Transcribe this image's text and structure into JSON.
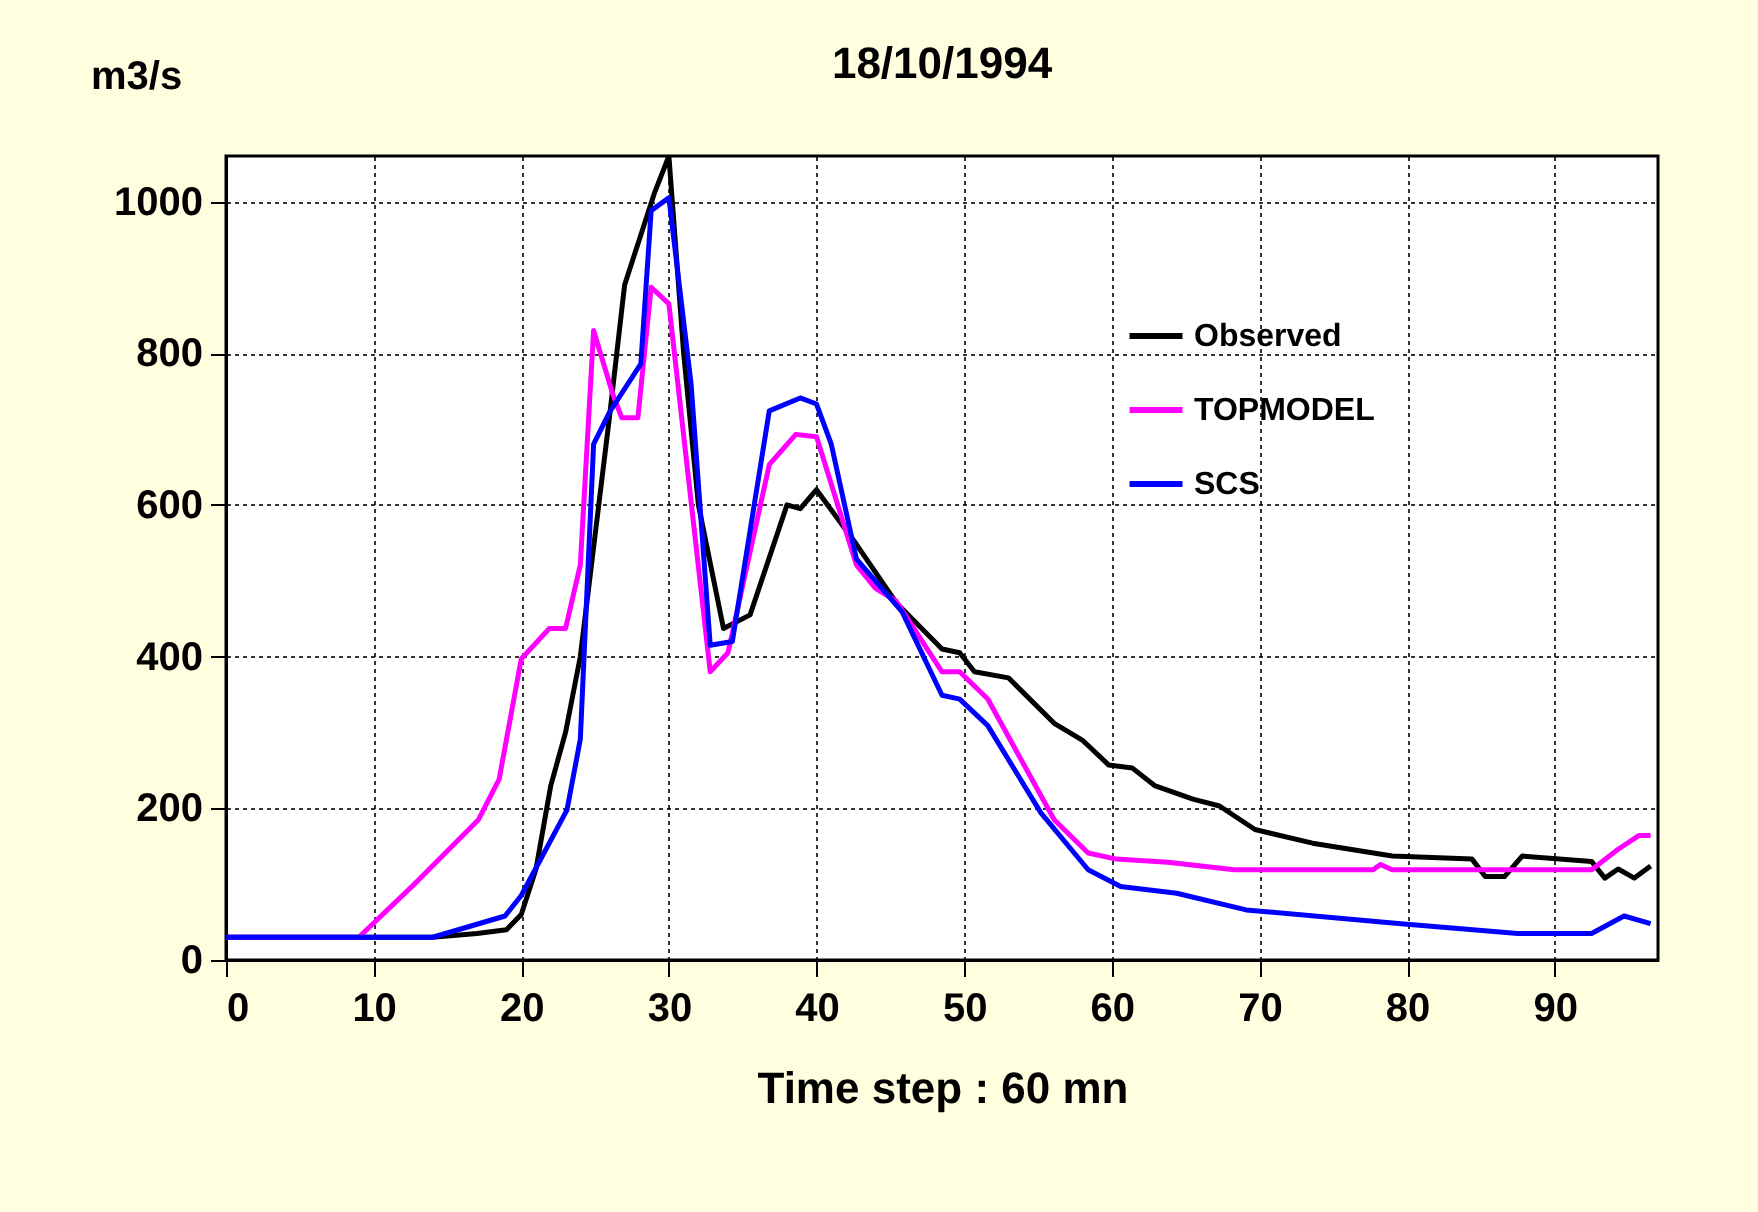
{
  "chart_data": {
    "type": "line",
    "title": "18/10/1994",
    "ylabel": "m3/s",
    "xlabel": "Time step : 60 mn",
    "xlim": [
      0,
      97
    ],
    "ylim": [
      0,
      1060
    ],
    "xticks": [
      0,
      10,
      20,
      30,
      40,
      50,
      60,
      70,
      80,
      90
    ],
    "yticks": [
      0,
      200,
      400,
      600,
      800,
      1000
    ],
    "grid": true,
    "legend": "top right",
    "series": [
      {
        "name": "Observed",
        "color": "#000000",
        "x": [
          0,
          14,
          17,
          19,
          20,
          21,
          22,
          23,
          24,
          25,
          26,
          27,
          28,
          29,
          30,
          31,
          32,
          33.7,
          35.5,
          38,
          38.9,
          40,
          42.7,
          45.4,
          48.5,
          49.7,
          50.7,
          53,
          56.1,
          58,
          59.8,
          61.4,
          62.9,
          65.5,
          67.3,
          69.7,
          73.6,
          79,
          84.4,
          85.3,
          86.6,
          87.8,
          92.5,
          93.4,
          94.3,
          95.4,
          96.5
        ],
        "values": [
          30,
          30,
          35,
          40,
          60,
          120,
          230,
          300,
          400,
          560,
          720,
          890,
          950,
          1010,
          1060,
          800,
          600,
          437,
          455,
          600,
          595,
          620,
          548,
          471,
          410,
          405,
          380,
          372,
          312,
          290,
          257,
          253,
          230,
          212,
          203,
          172,
          154,
          137,
          133,
          110,
          110,
          137,
          130,
          108,
          120,
          108,
          124
        ]
      },
      {
        "name": "TOPMODEL",
        "color": "#ff00ff",
        "x": [
          0,
          9,
          12.6,
          17.1,
          18.5,
          20,
          21.9,
          23,
          24,
          24.9,
          26.2,
          26.8,
          27.9,
          28.8,
          30,
          32.8,
          34,
          36.8,
          38.6,
          40,
          42.7,
          44,
          45.4,
          48.5,
          49.7,
          51.6,
          56.1,
          58.4,
          60.3,
          63.8,
          68.3,
          77.7,
          78.2,
          79,
          92.5,
          94.3,
          95.7,
          96.5
        ],
        "values": [
          30,
          30,
          97,
          185,
          238,
          397,
          437,
          437,
          521,
          830,
          746,
          715,
          715,
          887,
          865,
          380,
          405,
          653,
          693,
          690,
          521,
          490,
          473,
          380,
          380,
          344,
          185,
          141,
          133,
          129,
          119,
          119,
          126,
          119,
          119,
          146,
          164,
          164
        ]
      },
      {
        "name": "SCS",
        "color": "#0000ff",
        "x": [
          0,
          14,
          18.9,
          20,
          23.1,
          24,
          24.9,
          26,
          28.1,
          28.8,
          30,
          31.5,
          32.8,
          34.3,
          36.8,
          38.9,
          40,
          41,
          42.7,
          45.8,
          48.5,
          49.7,
          51.6,
          55.2,
          58.4,
          60.6,
          64.4,
          69.1,
          79.4,
          87.5,
          92.5,
          94.7,
          96.5
        ],
        "values": [
          30,
          30,
          58,
          85,
          198,
          291,
          680,
          723,
          786,
          988,
          1005,
          760,
          415,
          420,
          724,
          741,
          733,
          680,
          529,
          459,
          349,
          344,
          309,
          194,
          119,
          97,
          88,
          66,
          48,
          35,
          35,
          58,
          48
        ]
      }
    ]
  }
}
